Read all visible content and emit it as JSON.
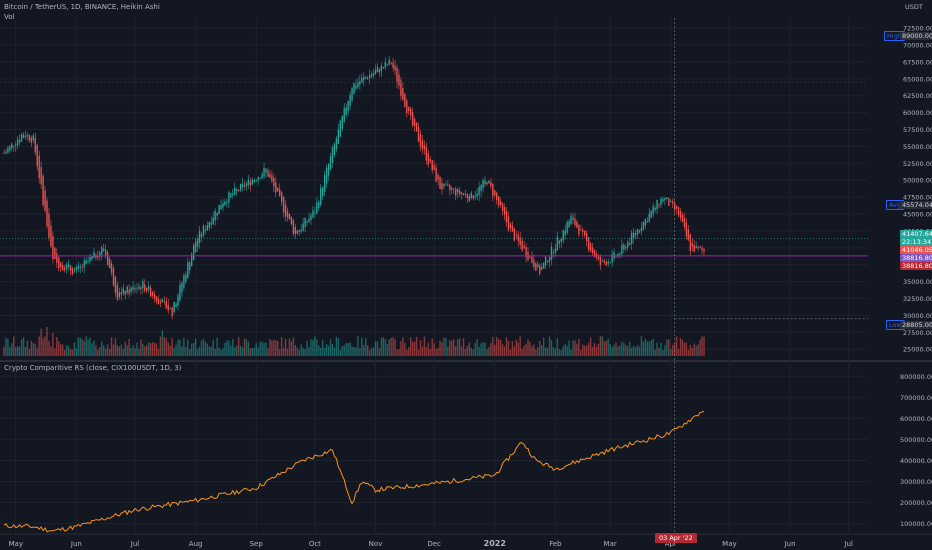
{
  "header": {
    "title": "Bitcoin / TetherUS, 1D, BINANCE, Heikin Ashi",
    "vol_label": "Vol",
    "currency": "USDT"
  },
  "indicator": {
    "legend": "Crypto Comparitive RS (close, CIX100USDT, 1D, 3)"
  },
  "axis_tags": {
    "high_label": "High",
    "high_value": "89000.00",
    "avg_label": "Avg",
    "avg_value": "45574.04",
    "low_label": "Low",
    "low_value": "28805.00"
  },
  "price_boxes": [
    {
      "text": "41407.64",
      "color": "#26a69a"
    },
    {
      "text": "22:13:34",
      "color": "#26a69a"
    },
    {
      "text": "41046.05",
      "color": "#ef5350"
    },
    {
      "text": "38816.80",
      "color": "#7e57c2"
    },
    {
      "text": "38816.80",
      "color": "#b22833"
    }
  ],
  "crosshair_date": "03 Apr '22",
  "colors": {
    "up": "#26a69a",
    "down": "#ef5350",
    "rs_line": "#f7931a",
    "bg": "#131722",
    "grid": "#1e222d",
    "hline": "#9c27b0"
  },
  "chart_data": [
    {
      "type": "candlestick",
      "style": "Heikin Ashi",
      "yticks": [
        "72500.00",
        "70000.00",
        "67500.00",
        "65000.00",
        "62500.00",
        "60000.00",
        "57500.00",
        "55000.00",
        "52500.00",
        "50000.00",
        "47500.00",
        "45000.00",
        "42500.00",
        "40000.00",
        "37500.00",
        "35000.00",
        "32500.00",
        "30000.00",
        "27500.00",
        "25000.00"
      ],
      "xticks": [
        "May",
        "Jun",
        "Jul",
        "Aug",
        "Sep",
        "Oct",
        "Nov",
        "Dec",
        "2022",
        "Feb",
        "Mar",
        "Apr",
        "May",
        "Jun",
        "Jul"
      ],
      "ylim": [
        24000,
        74000
      ],
      "close_keypoints": {
        "dates": [
          "2021-04-25",
          "2021-05-05",
          "2021-05-10",
          "2021-05-20",
          "2021-06-01",
          "2021-06-15",
          "2021-06-22",
          "2021-07-05",
          "2021-07-20",
          "2021-08-01",
          "2021-08-15",
          "2021-09-06",
          "2021-09-21",
          "2021-10-01",
          "2021-10-20",
          "2021-11-09",
          "2021-11-20",
          "2021-12-04",
          "2021-12-20",
          "2021-12-28",
          "2022-01-10",
          "2022-01-24",
          "2022-02-09",
          "2022-02-24",
          "2022-03-05",
          "2022-03-28",
          "2022-04-05",
          "2022-04-11",
          "2022-04-18"
        ],
        "values": [
          54000,
          57000,
          56000,
          38000,
          36500,
          40000,
          33000,
          34500,
          30500,
          41000,
          47000,
          51500,
          42000,
          45500,
          64000,
          67500,
          58000,
          49000,
          47500,
          50000,
          42000,
          36500,
          44500,
          37500,
          39000,
          47500,
          45000,
          40000,
          39500
        ]
      },
      "volume_label": "Vol"
    },
    {
      "type": "line",
      "series": [
        {
          "name": "Crypto Comparitive RS (close, CIX100USDT, 1D, 3)"
        }
      ],
      "yticks": [
        "800000.00",
        "700000.00",
        "600000.00",
        "500000.00",
        "400000.00",
        "300000.00",
        "200000.00",
        "100000.00"
      ],
      "ylim": [
        60000,
        830000
      ],
      "keypoints": {
        "dates": [
          "2021-04-25",
          "2021-05-10",
          "2021-05-20",
          "2021-06-01",
          "2021-07-01",
          "2021-08-01",
          "2021-09-01",
          "2021-09-25",
          "2021-10-10",
          "2021-10-20",
          "2021-10-25",
          "2021-11-01",
          "2021-12-01",
          "2022-01-01",
          "2022-01-15",
          "2022-01-22",
          "2022-02-01",
          "2022-03-01",
          "2022-04-01",
          "2022-04-15",
          "2022-04-18"
        ],
        "values": [
          90000,
          85000,
          65000,
          85000,
          165000,
          210000,
          270000,
          400000,
          450000,
          200000,
          300000,
          260000,
          290000,
          330000,
          490000,
          400000,
          360000,
          450000,
          530000,
          620000,
          640000
        ]
      }
    }
  ]
}
